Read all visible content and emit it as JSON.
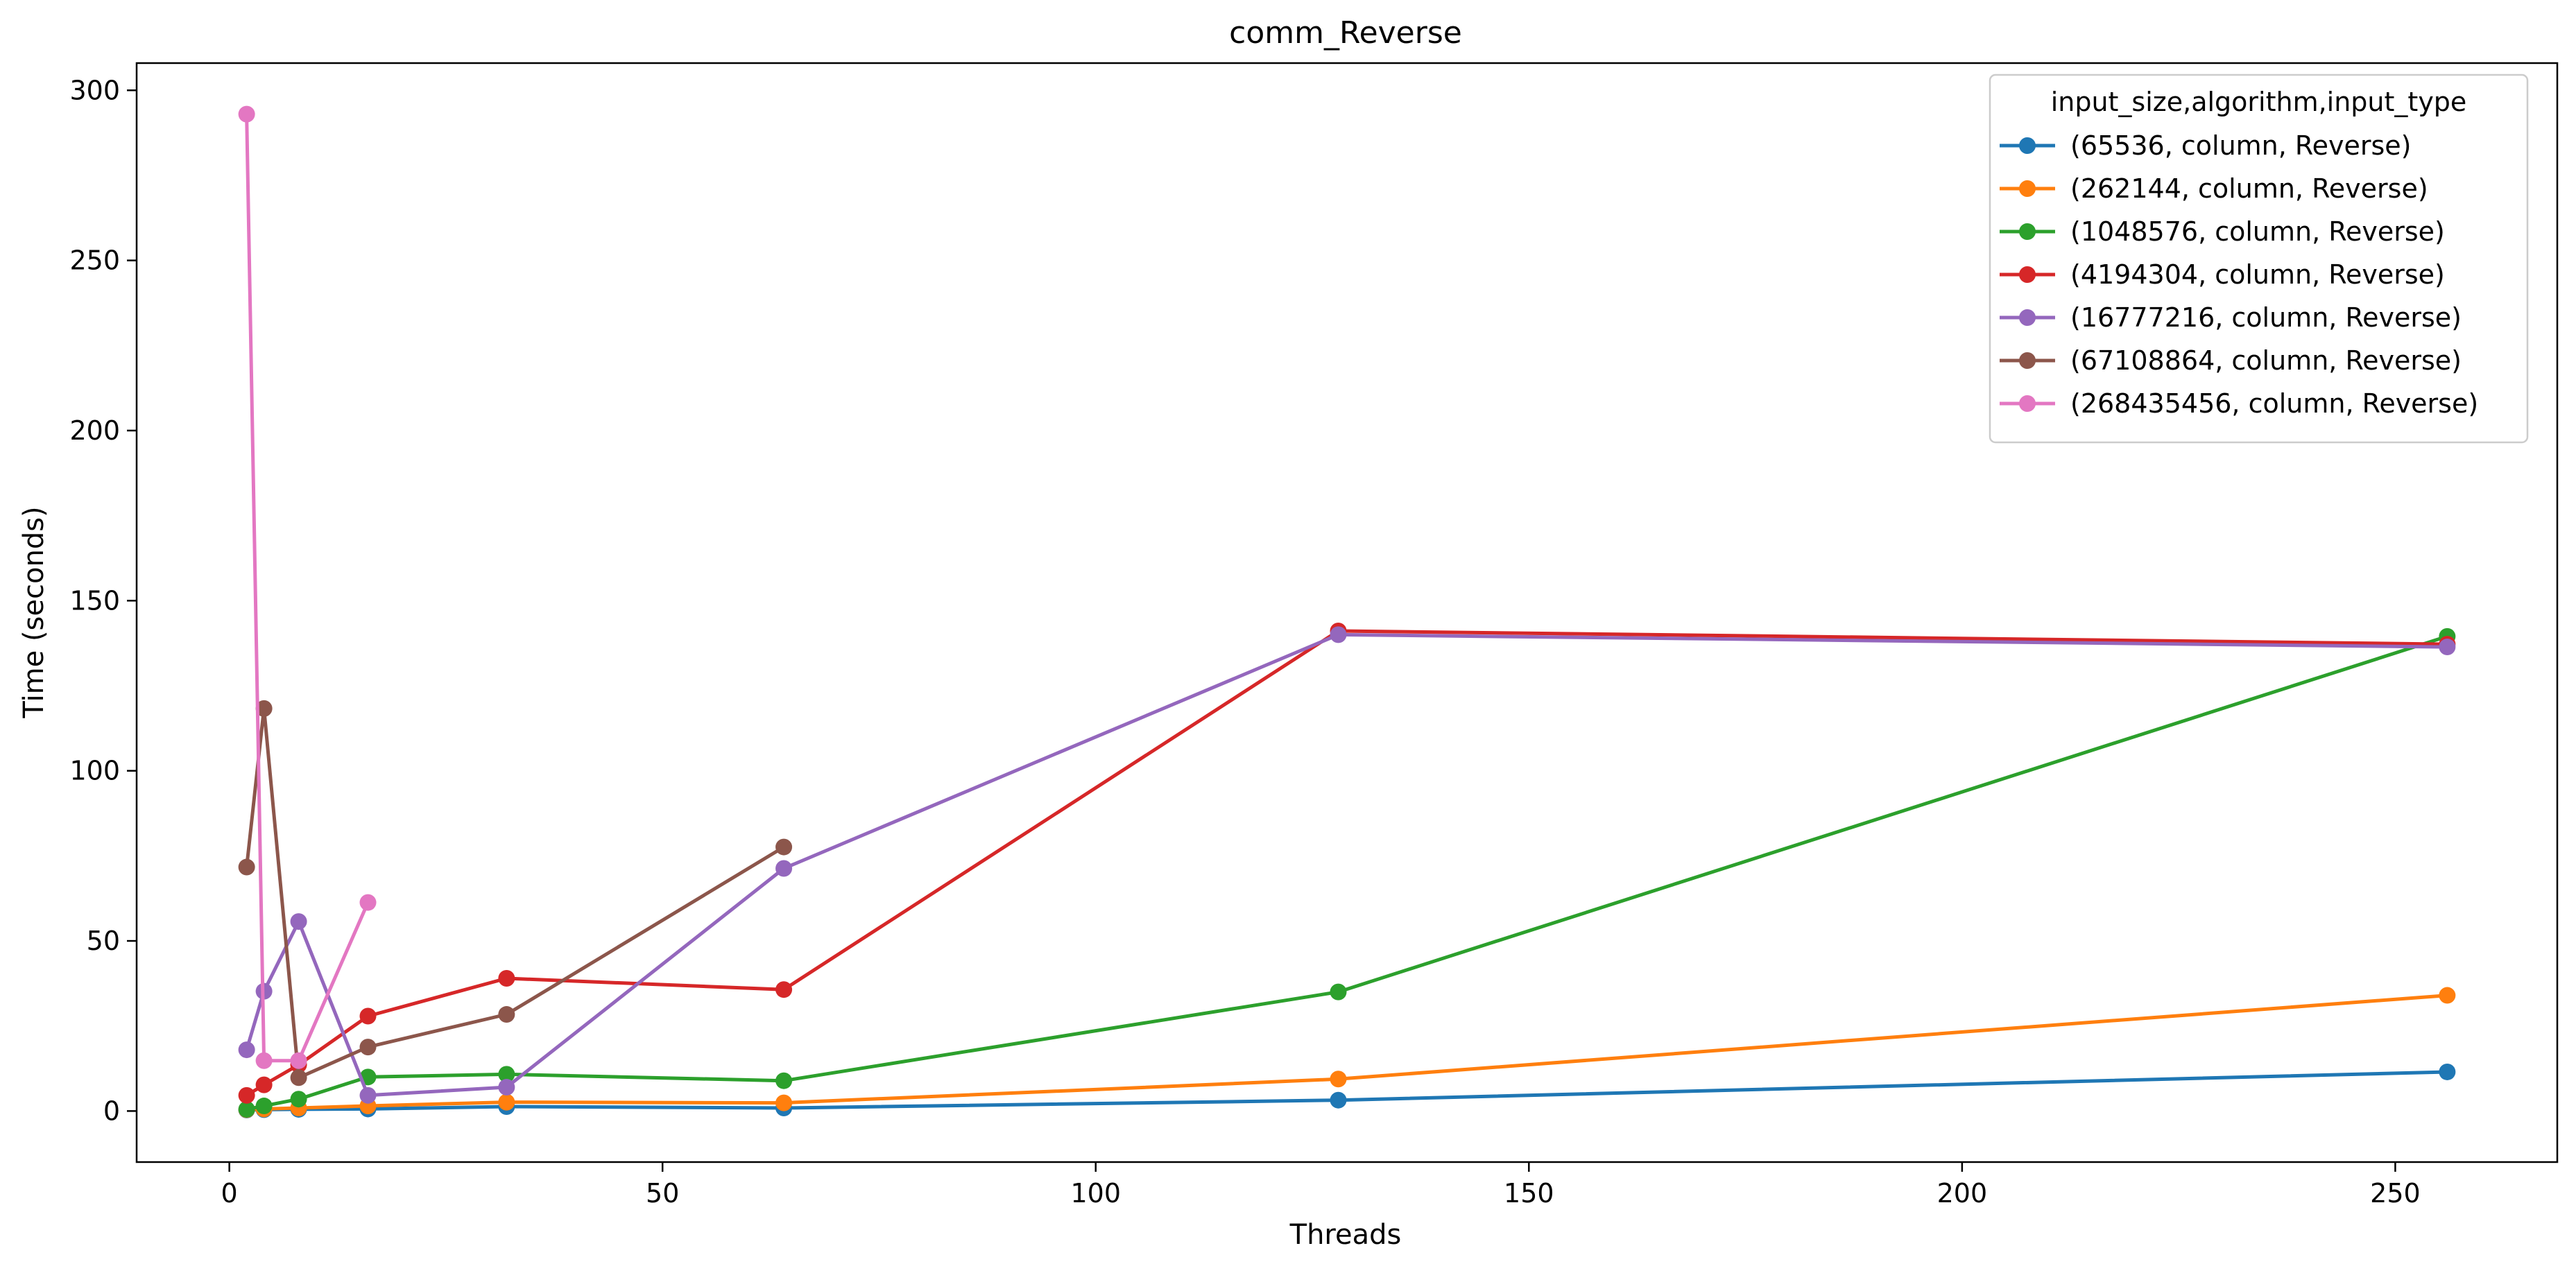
{
  "chart_data": {
    "type": "line",
    "title": "comm_Reverse",
    "xlabel": "Threads",
    "ylabel": "Time (seconds)",
    "xlim": [
      -10.7,
      268.7
    ],
    "ylim": [
      -15,
      308
    ],
    "xticks": [
      0,
      50,
      100,
      150,
      200,
      250
    ],
    "yticks": [
      0,
      50,
      100,
      150,
      200,
      250,
      300
    ],
    "grid": false,
    "legend": {
      "title": "input_size,algorithm,input_type",
      "placement": "top-right"
    },
    "series": [
      {
        "name": "(65536, column, Reverse)",
        "color": "#1f77b4",
        "x": [
          2,
          4,
          8,
          16,
          32,
          64,
          128,
          256
        ],
        "y": [
          0.3,
          0.4,
          0.5,
          0.6,
          1.3,
          0.9,
          3.2,
          11.5
        ]
      },
      {
        "name": "(262144, column, Reverse)",
        "color": "#ff7f0e",
        "x": [
          2,
          4,
          8,
          16,
          32,
          64,
          128,
          256
        ],
        "y": [
          0.4,
          0.6,
          0.9,
          1.5,
          2.6,
          2.4,
          9.4,
          34.0
        ]
      },
      {
        "name": "(1048576, column, Reverse)",
        "color": "#2ca02c",
        "x": [
          2,
          4,
          8,
          16,
          32,
          64,
          128,
          256
        ],
        "y": [
          0.5,
          1.5,
          3.5,
          10.0,
          10.8,
          8.9,
          35.0,
          139.5
        ]
      },
      {
        "name": "(4194304, column, Reverse)",
        "color": "#d62728",
        "x": [
          2,
          4,
          8,
          16,
          32,
          64,
          128,
          256
        ],
        "y": [
          4.6,
          7.7,
          13.6,
          27.9,
          39.0,
          35.7,
          141.1,
          137.2
        ]
      },
      {
        "name": "(16777216, column, Reverse)",
        "color": "#9467bd",
        "x": [
          2,
          4,
          8,
          16,
          32,
          64,
          128,
          256
        ],
        "y": [
          18.0,
          35.2,
          55.7,
          4.6,
          7.0,
          71.3,
          140.0,
          136.4
        ]
      },
      {
        "name": "(67108864, column, Reverse)",
        "color": "#8c564b",
        "x": [
          2,
          4,
          8,
          16,
          32,
          64
        ],
        "y": [
          71.7,
          118.3,
          9.8,
          18.8,
          28.4,
          77.6
        ]
      },
      {
        "name": "(268435456, column, Reverse)",
        "color": "#e377c2",
        "x": [
          2,
          4,
          8,
          16
        ],
        "y": [
          293.0,
          14.8,
          14.8,
          61.3
        ]
      }
    ]
  }
}
